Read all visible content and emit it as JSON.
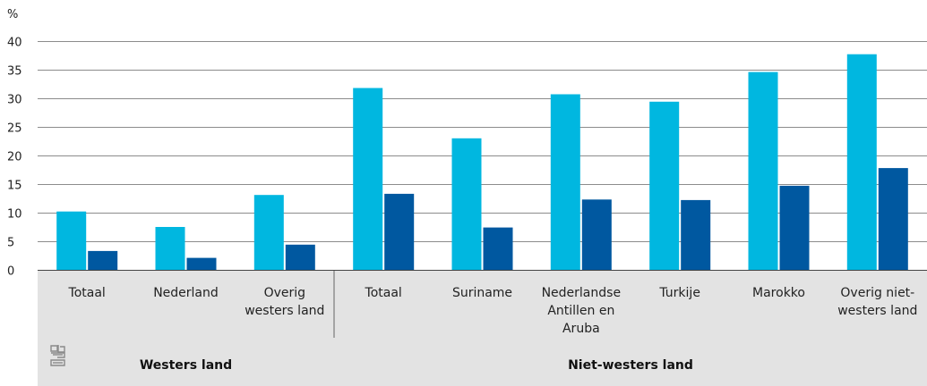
{
  "chart_data": {
    "type": "bar",
    "unit_label": "%",
    "ylim": [
      0,
      40
    ],
    "yticks": [
      0,
      5,
      10,
      15,
      20,
      25,
      30,
      35,
      40
    ],
    "grid": true,
    "colors": [
      "#00b7e0",
      "#0058a0"
    ],
    "groups": [
      {
        "label": "Westers land",
        "categories": [
          0,
          1,
          2
        ]
      },
      {
        "label": "Niet-westers land",
        "categories": [
          3,
          4,
          5,
          6,
          7,
          8
        ]
      }
    ],
    "categories": [
      [
        "Totaal"
      ],
      [
        "Nederland"
      ],
      [
        "Overig",
        "westers land"
      ],
      [
        "Totaal"
      ],
      [
        "Suriname"
      ],
      [
        "Nederlandse",
        "Antillen en",
        "Aruba"
      ],
      [
        "Turkije"
      ],
      [
        "Marokko"
      ],
      [
        "Overig niet-",
        "westers land"
      ]
    ],
    "series": [
      {
        "values": [
          10.2,
          7.5,
          13.1,
          31.8,
          23.0,
          30.7,
          29.4,
          34.6,
          37.7
        ]
      },
      {
        "values": [
          3.3,
          2.1,
          4.4,
          13.3,
          7.4,
          12.3,
          12.2,
          14.7,
          17.8
        ]
      }
    ]
  },
  "logo": {
    "icon": "cbs-logo-icon"
  }
}
